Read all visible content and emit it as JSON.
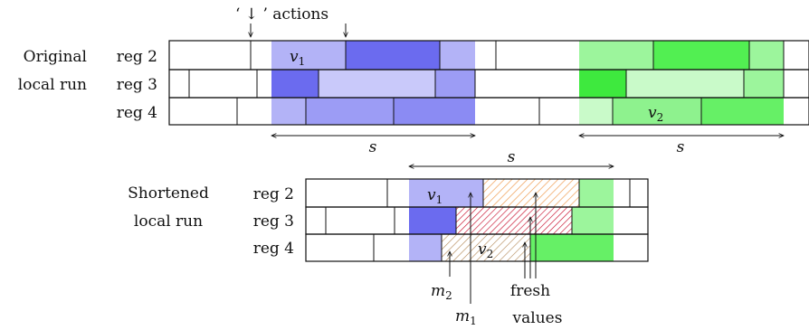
{
  "labels": {
    "actions": "‘ ↓ ’ actions",
    "original_line1": "Original",
    "original_line2": "local run",
    "shortened_line1": "Shortened",
    "shortened_line2": "local run",
    "reg2": "reg 2",
    "reg3": "reg 3",
    "reg4": "reg 4",
    "s": "s",
    "v1": "v",
    "v1_sub": "1",
    "v2": "v",
    "v2_sub": "2",
    "m1": "m",
    "m1_sub": "1",
    "m2": "m",
    "m2_sub": "2",
    "fresh": "fresh",
    "values": "values"
  },
  "colors": {
    "blue_light": "#b3b3f7",
    "blue_pale": "#c9c9fa",
    "blue_mid": "#9c9cf5",
    "blue_dark": "#6b6bef",
    "green_light": "#9cf59c",
    "green_pale": "#c9fac9",
    "green_mid": "#77f277",
    "green_dark": "#52ef52",
    "orange_hatch": "#f0a15a",
    "red_hatch": "#d0103a",
    "brown_hatch": "#b48a5a"
  }
}
